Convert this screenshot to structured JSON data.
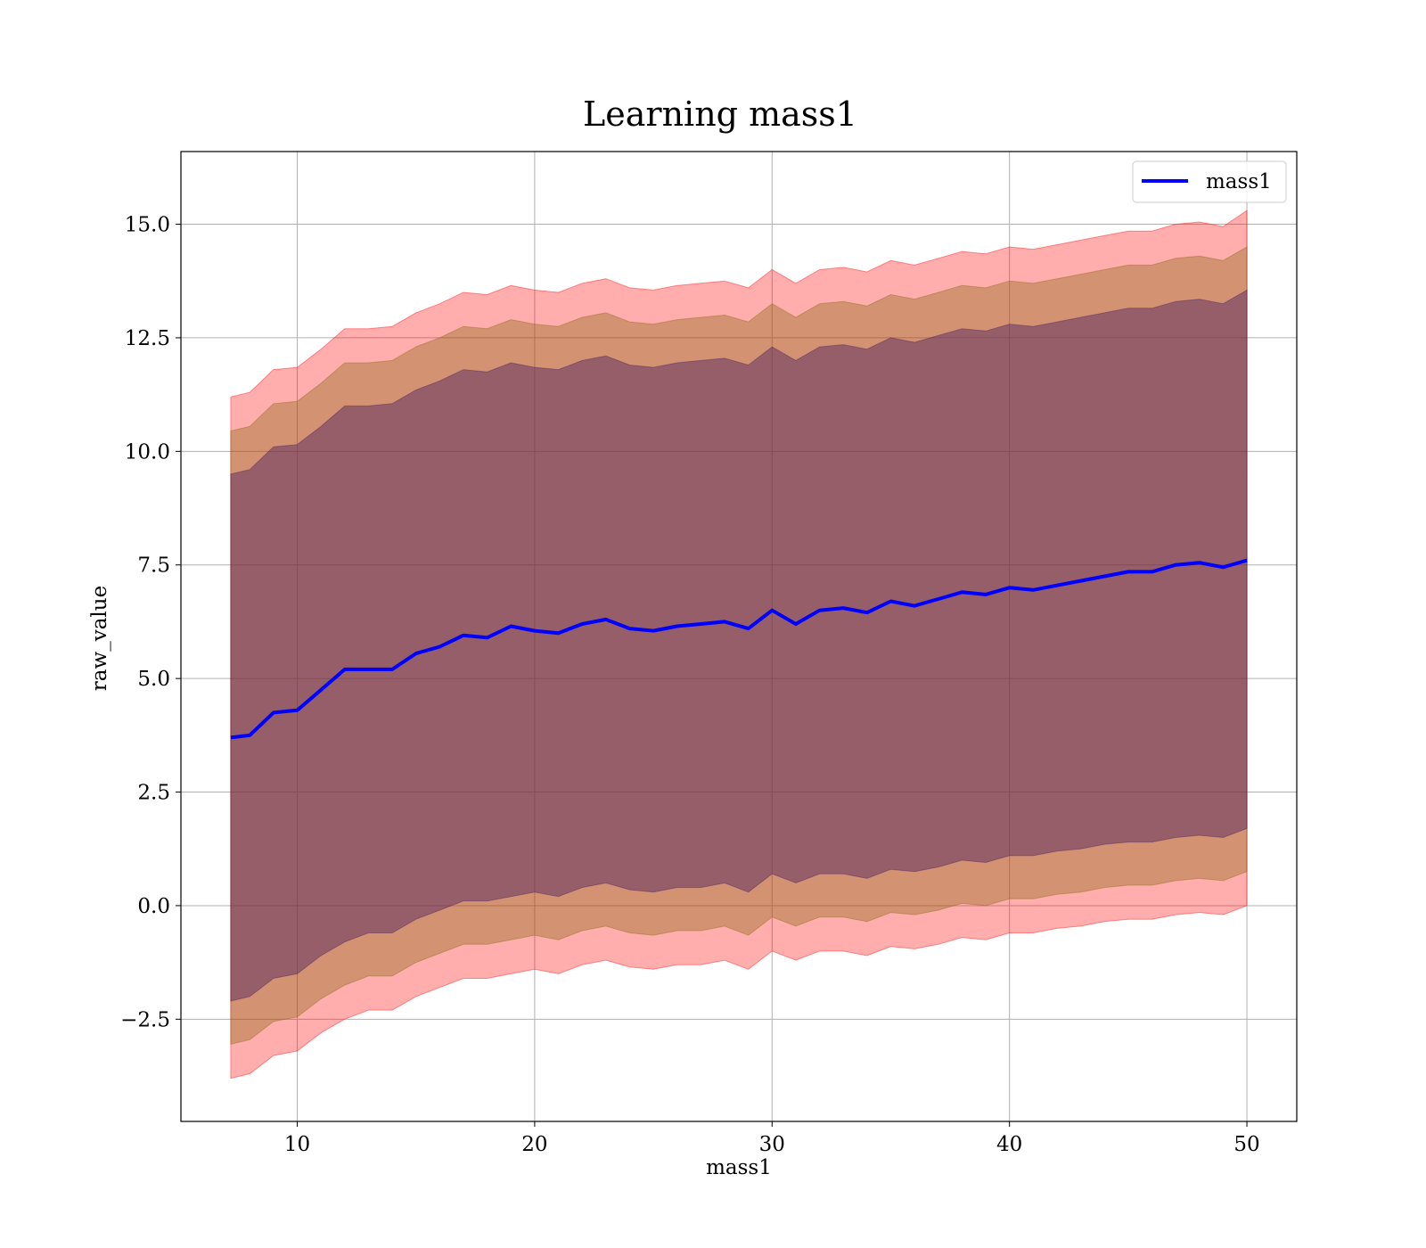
{
  "chart_data": {
    "type": "line",
    "title": "Learning mass1",
    "xlabel": "mass1",
    "ylabel": "raw_value",
    "xlim": [
      5.1,
      52.1
    ],
    "ylim": [
      -4.75,
      16.6
    ],
    "x_ticks": [
      10,
      20,
      30,
      40,
      50
    ],
    "x_tick_labels": [
      "10",
      "20",
      "30",
      "40",
      "50"
    ],
    "y_ticks": [
      -2.5,
      0.0,
      2.5,
      5.0,
      7.5,
      10.0,
      12.5,
      15.0
    ],
    "y_tick_labels": [
      "−2.5",
      "0.0",
      "2.5",
      "5.0",
      "7.5",
      "10.0",
      "12.5",
      "15.0"
    ],
    "grid": true,
    "legend": {
      "position": "upper right",
      "entries": [
        "mass1"
      ]
    },
    "colors": {
      "line": "#0000ff",
      "band_outer": "#ff0000",
      "band_middle": "#8b6914",
      "band_inner": "#4b1f5e",
      "grid": "#b0b0b0"
    },
    "x": [
      7.2,
      8,
      9,
      10,
      11,
      12,
      13,
      14,
      15,
      16,
      17,
      18,
      19,
      20,
      21,
      22,
      23,
      24,
      25,
      26,
      27,
      28,
      29,
      30,
      31,
      32,
      33,
      34,
      35,
      36,
      37,
      38,
      39,
      40,
      41,
      42,
      43,
      44,
      45,
      46,
      47,
      48,
      49,
      50
    ],
    "series": [
      {
        "name": "mass1",
        "values": [
          3.7,
          3.75,
          4.25,
          4.3,
          4.75,
          5.2,
          5.2,
          5.2,
          5.55,
          5.7,
          5.95,
          5.9,
          6.15,
          6.05,
          6.0,
          6.2,
          6.3,
          6.1,
          6.05,
          6.15,
          6.2,
          6.25,
          6.1,
          6.5,
          6.2,
          6.5,
          6.55,
          6.45,
          6.7,
          6.6,
          6.75,
          6.9,
          6.85,
          7.0,
          6.95,
          7.05,
          7.15,
          7.25,
          7.35,
          7.35,
          7.5,
          7.55,
          7.45,
          7.6
        ]
      }
    ],
    "bands": [
      {
        "level": "outer",
        "lower": [
          -3.8,
          -3.7,
          -3.3,
          -3.2,
          -2.8,
          -2.5,
          -2.3,
          -2.3,
          -2.0,
          -1.8,
          -1.6,
          -1.6,
          -1.5,
          -1.4,
          -1.5,
          -1.3,
          -1.2,
          -1.35,
          -1.4,
          -1.3,
          -1.3,
          -1.2,
          -1.4,
          -1.0,
          -1.2,
          -1.0,
          -1.0,
          -1.1,
          -0.9,
          -0.95,
          -0.85,
          -0.7,
          -0.75,
          -0.6,
          -0.6,
          -0.5,
          -0.45,
          -0.35,
          -0.3,
          -0.3,
          -0.2,
          -0.15,
          -0.2,
          0.0
        ],
        "upper": [
          11.2,
          11.3,
          11.8,
          11.85,
          12.25,
          12.7,
          12.7,
          12.75,
          13.05,
          13.25,
          13.5,
          13.45,
          13.65,
          13.55,
          13.5,
          13.7,
          13.8,
          13.6,
          13.55,
          13.65,
          13.7,
          13.75,
          13.6,
          14.0,
          13.7,
          14.0,
          14.05,
          13.95,
          14.2,
          14.1,
          14.25,
          14.4,
          14.35,
          14.5,
          14.45,
          14.55,
          14.65,
          14.75,
          14.85,
          14.85,
          15.0,
          15.05,
          14.95,
          15.3
        ]
      },
      {
        "level": "middle",
        "lower": [
          -3.05,
          -2.95,
          -2.55,
          -2.45,
          -2.05,
          -1.75,
          -1.55,
          -1.55,
          -1.25,
          -1.05,
          -0.85,
          -0.85,
          -0.75,
          -0.65,
          -0.75,
          -0.55,
          -0.45,
          -0.6,
          -0.65,
          -0.55,
          -0.55,
          -0.45,
          -0.65,
          -0.25,
          -0.45,
          -0.25,
          -0.25,
          -0.35,
          -0.15,
          -0.2,
          -0.1,
          0.05,
          0.0,
          0.15,
          0.15,
          0.25,
          0.3,
          0.4,
          0.45,
          0.45,
          0.55,
          0.6,
          0.55,
          0.75
        ],
        "upper": [
          10.45,
          10.55,
          11.05,
          11.1,
          11.5,
          11.95,
          11.95,
          12.0,
          12.3,
          12.5,
          12.75,
          12.7,
          12.9,
          12.8,
          12.75,
          12.95,
          13.05,
          12.85,
          12.8,
          12.9,
          12.95,
          13.0,
          12.85,
          13.25,
          12.95,
          13.25,
          13.3,
          13.2,
          13.45,
          13.35,
          13.5,
          13.65,
          13.6,
          13.75,
          13.7,
          13.8,
          13.9,
          14.0,
          14.1,
          14.1,
          14.25,
          14.3,
          14.2,
          14.5
        ]
      },
      {
        "level": "inner",
        "lower": [
          -2.1,
          -2.0,
          -1.6,
          -1.5,
          -1.1,
          -0.8,
          -0.6,
          -0.6,
          -0.3,
          -0.1,
          0.1,
          0.1,
          0.2,
          0.3,
          0.2,
          0.4,
          0.5,
          0.35,
          0.3,
          0.4,
          0.4,
          0.5,
          0.3,
          0.7,
          0.5,
          0.7,
          0.7,
          0.6,
          0.8,
          0.75,
          0.85,
          1.0,
          0.95,
          1.1,
          1.1,
          1.2,
          1.25,
          1.35,
          1.4,
          1.4,
          1.5,
          1.55,
          1.5,
          1.7
        ],
        "upper": [
          9.5,
          9.6,
          10.1,
          10.15,
          10.55,
          11.0,
          11.0,
          11.05,
          11.35,
          11.55,
          11.8,
          11.75,
          11.95,
          11.85,
          11.8,
          12.0,
          12.1,
          11.9,
          11.85,
          11.95,
          12.0,
          12.05,
          11.9,
          12.3,
          12.0,
          12.3,
          12.35,
          12.25,
          12.5,
          12.4,
          12.55,
          12.7,
          12.65,
          12.8,
          12.75,
          12.85,
          12.95,
          13.05,
          13.15,
          13.15,
          13.3,
          13.35,
          13.25,
          13.55
        ]
      }
    ]
  }
}
